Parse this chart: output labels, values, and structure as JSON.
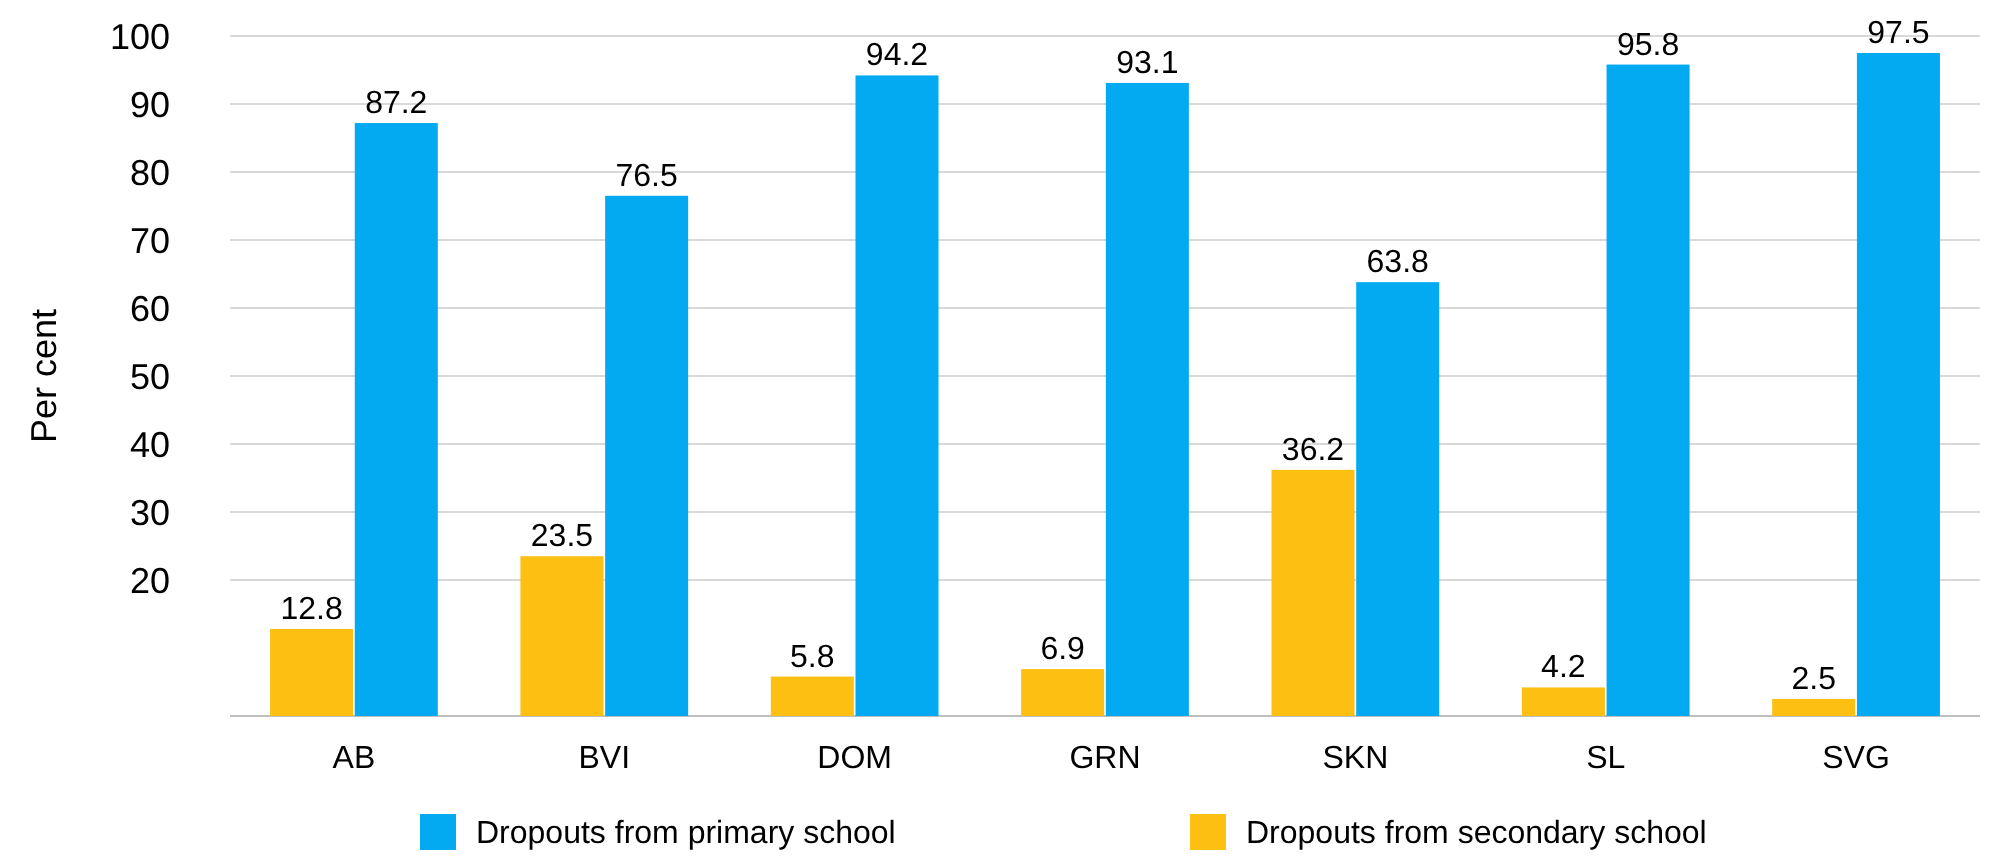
{
  "chart_data": {
    "type": "bar",
    "ylabel": "Per cent",
    "categories": [
      "AB",
      "BVI",
      "DOM",
      "GRN",
      "SKN",
      "SL",
      "SVG"
    ],
    "series": [
      {
        "name": "Dropouts from secondary school",
        "color": "#fcbf12",
        "values": [
          12.8,
          23.5,
          5.8,
          6.9,
          36.2,
          4.2,
          2.5
        ]
      },
      {
        "name": "Dropouts from primary school",
        "color": "#03a9f1",
        "values": [
          87.2,
          76.5,
          94.2,
          93.1,
          63.8,
          95.8,
          97.5
        ]
      }
    ],
    "ylim": [
      0,
      100
    ],
    "yticks": [
      20,
      30,
      40,
      50,
      60,
      70,
      80,
      90,
      100
    ],
    "grid": "y",
    "legend": "bottom",
    "data_labels": true
  }
}
